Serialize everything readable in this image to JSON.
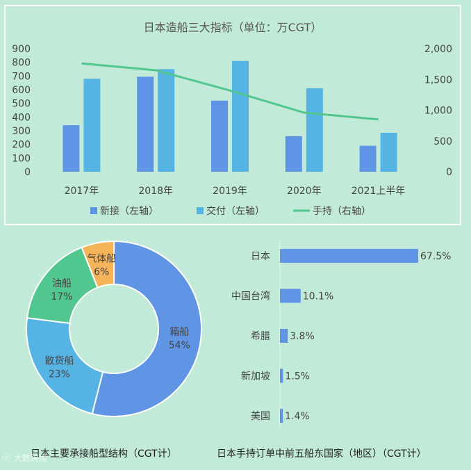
{
  "chart_data": [
    {
      "type": "bar",
      "title": "日本造船三大指标（单位：万CGT）",
      "categories": [
        "2017年",
        "2018年",
        "2019年",
        "2020年",
        "2021上半年"
      ],
      "left_axis": {
        "ticks": [
          "900",
          "800",
          "700",
          "600",
          "500",
          "400",
          "300",
          "200",
          "100",
          "0"
        ],
        "ylim": [
          0,
          900
        ]
      },
      "right_axis": {
        "ticks": [
          "2,000",
          "1,500",
          "1,000",
          "500",
          "0"
        ],
        "ylim": [
          0,
          2000
        ]
      },
      "series": [
        {
          "name": "新接（左轴）",
          "type": "bar",
          "axis": "left",
          "color": "#5f95e4",
          "values": [
            340,
            695,
            520,
            260,
            190
          ]
        },
        {
          "name": "交付（左轴）",
          "type": "bar",
          "axis": "left",
          "color": "#56b4e5",
          "values": [
            680,
            750,
            810,
            610,
            285
          ]
        },
        {
          "name": "手持（右轴）",
          "type": "line",
          "axis": "right",
          "color": "#52c68f",
          "values": [
            1760,
            1650,
            1320,
            960,
            850
          ]
        }
      ],
      "grid": false,
      "legend": "bottom"
    },
    {
      "type": "pie",
      "title": "日本主要承接船型结构（CGT计）",
      "slices": [
        {
          "label": "箱船",
          "value": 54,
          "pct": "54%",
          "color": "#5f95e4"
        },
        {
          "label": "散货船",
          "value": 23,
          "pct": "23%",
          "color": "#56b4e5"
        },
        {
          "label": "油船",
          "value": 17,
          "pct": "17%",
          "color": "#52c68f"
        },
        {
          "label": "气体船",
          "value": 6,
          "pct": "6%",
          "color": "#f5b35a"
        }
      ]
    },
    {
      "type": "bar",
      "orientation": "horizontal",
      "title": "日本手持订单中前五船东国家（地区）（CGT计）",
      "categories": [
        "日本",
        "中国台湾",
        "希腊",
        "新加坡",
        "美国"
      ],
      "values": [
        67.5,
        10.1,
        3.8,
        1.5,
        1.4
      ],
      "labels": [
        "67.5%",
        "10.1%",
        "3.8%",
        "1.5%",
        "1.4%"
      ],
      "color": "#5f95e4",
      "xlim": [
        0,
        67.5
      ]
    }
  ],
  "watermark": "大数跨境"
}
